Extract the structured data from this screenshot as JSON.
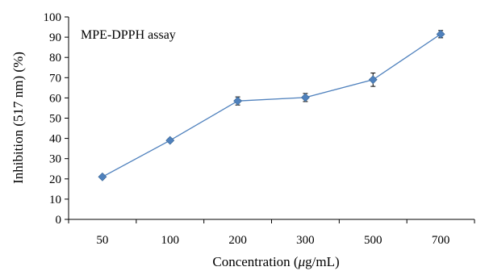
{
  "chart_data": {
    "type": "line",
    "title": "",
    "annotation": "MPE-DPPH assay",
    "xlabel_prefix": "Concentration (",
    "xlabel_mu": "μ",
    "xlabel_suffix": "g/mL)",
    "ylabel": "Inhibition (517 nm) (%)",
    "categories": [
      "50",
      "100",
      "200",
      "300",
      "500",
      "700"
    ],
    "ylim": [
      0,
      100
    ],
    "yticks": [
      0,
      10,
      20,
      30,
      40,
      50,
      60,
      70,
      80,
      90,
      100
    ],
    "grid": false,
    "legend": "none",
    "series": [
      {
        "values": [
          21,
          39,
          58.5,
          60.2,
          69,
          91.5
        ],
        "errors": [
          0.8,
          0.8,
          2,
          2,
          3.3,
          1.8
        ],
        "color": "#4F81BD"
      }
    ]
  }
}
